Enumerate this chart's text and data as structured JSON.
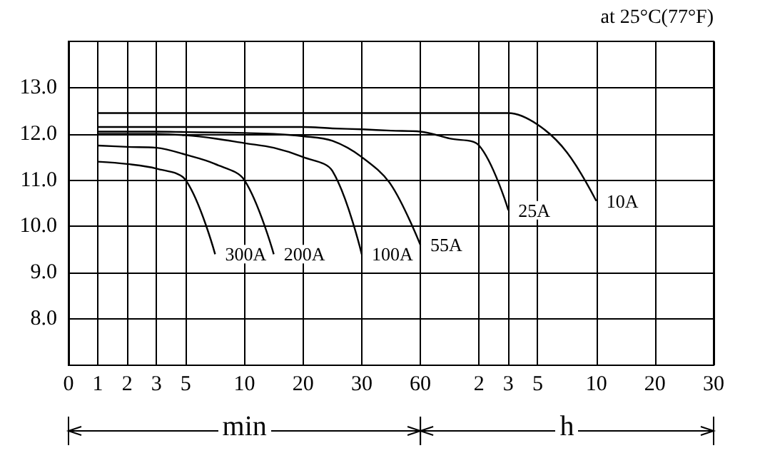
{
  "chart_data": {
    "type": "line",
    "annotations": [
      "at 25°C(77°F)",
      "min",
      "h"
    ],
    "categories": [
      "0",
      "1",
      "2",
      "3",
      "5",
      null,
      "10",
      null,
      "20",
      null,
      "30",
      null,
      "60",
      null,
      "2",
      "3",
      "5",
      null,
      "10",
      null,
      "20",
      null,
      "30"
    ],
    "ylim": [
      7,
      14
    ],
    "yticks": [
      {
        "value": 8,
        "label": "8.0"
      },
      {
        "value": 9,
        "label": "9.0"
      },
      {
        "value": 10,
        "label": "10.0"
      },
      {
        "value": 11,
        "label": "11.0"
      },
      {
        "value": 12,
        "label": "12.0"
      },
      {
        "value": 13,
        "label": "13.0"
      }
    ],
    "grid": true,
    "legend": false,
    "marker": "none",
    "line_style": "solid",
    "series": [
      {
        "name": "300A",
        "color": "#000000",
        "values": [
          null,
          11.4,
          11.35,
          11.25,
          11.0,
          9.4,
          null,
          null,
          null,
          null,
          null,
          null,
          null,
          null,
          null,
          null,
          null,
          null,
          null,
          null,
          null,
          null,
          null
        ]
      },
      {
        "name": "200A",
        "color": "#000000",
        "values": [
          null,
          11.75,
          11.72,
          11.7,
          11.55,
          11.35,
          11.0,
          9.4,
          null,
          null,
          null,
          null,
          null,
          null,
          null,
          null,
          null,
          null,
          null,
          null,
          null,
          null,
          null
        ]
      },
      {
        "name": "100A",
        "color": "#000000",
        "values": [
          null,
          12.0,
          12.0,
          12.0,
          11.97,
          11.9,
          11.8,
          11.7,
          11.5,
          11.2,
          9.4,
          null,
          null,
          null,
          null,
          null,
          null,
          null,
          null,
          null,
          null,
          null,
          null
        ]
      },
      {
        "name": "55A",
        "color": "#000000",
        "values": [
          null,
          12.05,
          12.05,
          12.05,
          12.04,
          12.03,
          12.02,
          12.0,
          11.95,
          11.85,
          11.5,
          10.9,
          9.6,
          null,
          null,
          null,
          null,
          null,
          null,
          null,
          null,
          null,
          null
        ]
      },
      {
        "name": "25A",
        "color": "#000000",
        "values": [
          null,
          12.15,
          12.15,
          12.15,
          12.15,
          12.15,
          12.15,
          12.15,
          12.15,
          12.12,
          12.1,
          12.07,
          12.05,
          11.9,
          11.75,
          10.35,
          null,
          null,
          null,
          null,
          null,
          null,
          null
        ]
      },
      {
        "name": "10A",
        "color": "#000000",
        "values": [
          null,
          12.45,
          12.45,
          12.45,
          12.45,
          12.45,
          12.45,
          12.45,
          12.45,
          12.45,
          12.45,
          12.45,
          12.45,
          12.45,
          12.45,
          12.45,
          12.2,
          11.6,
          10.55,
          null,
          null,
          null,
          null
        ]
      }
    ]
  }
}
